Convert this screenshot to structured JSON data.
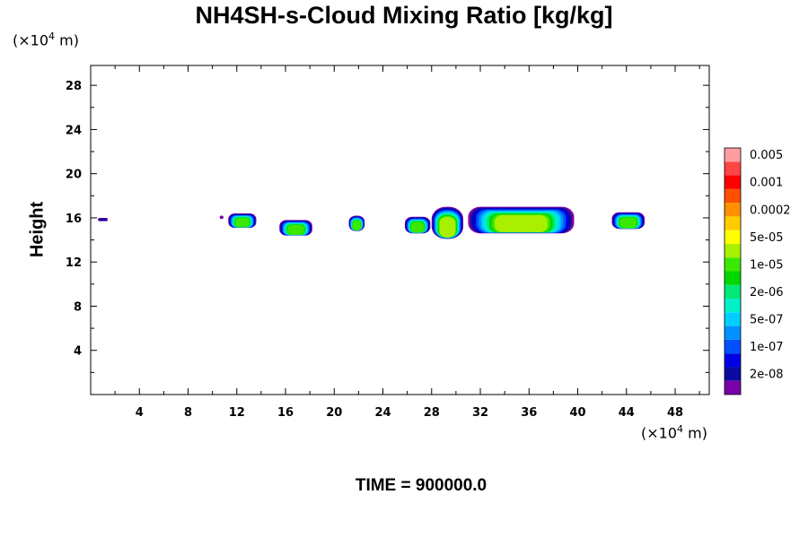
{
  "chart_data": {
    "type": "heatmap",
    "title": "NH4SH-s-Cloud Mixing Ratio [kg/kg]",
    "ylabel": "Height",
    "xlabel": "",
    "x_unit": {
      "base": "(×10",
      "exp": "4",
      "tail": " m)"
    },
    "y_unit": {
      "base": "(×10",
      "exp": "4",
      "tail": " m)"
    },
    "xlim": [
      0,
      50.8
    ],
    "ylim": [
      0,
      29.8
    ],
    "x_ticks": [
      4,
      8,
      12,
      16,
      20,
      24,
      28,
      32,
      36,
      40,
      44,
      48
    ],
    "y_ticks": [
      4,
      8,
      12,
      16,
      20,
      24,
      28
    ],
    "footer": "TIME = 900000.0",
    "colorbar": {
      "colors": [
        "#7a00a8",
        "#0a0a9e",
        "#0000e6",
        "#0050ff",
        "#0090ff",
        "#00d0ff",
        "#00f0c8",
        "#00e878",
        "#00d800",
        "#3ce800",
        "#a8f000",
        "#ffff00",
        "#ffcc00",
        "#ff9000",
        "#ff5000",
        "#ff0000",
        "#ff4646",
        "#ff9ea0"
      ],
      "labels": [
        "2e-08",
        "1e-07",
        "5e-07",
        "2e-06",
        "1e-05",
        "5e-05",
        "0.0002",
        "0.001",
        "0.005"
      ]
    },
    "clouds": [
      {
        "x0": 0.6,
        "x1": 1.4,
        "base": 15.7,
        "top": 16.0,
        "peak": 2
      },
      {
        "x0": 10.6,
        "x1": 10.9,
        "base": 15.9,
        "top": 16.2,
        "peak": 1
      },
      {
        "x0": 11.3,
        "x1": 13.6,
        "base": 15.1,
        "top": 16.4,
        "peak": 10
      },
      {
        "x0": 15.5,
        "x1": 18.2,
        "base": 14.4,
        "top": 15.8,
        "peak": 10
      },
      {
        "x0": 21.2,
        "x1": 22.5,
        "base": 14.8,
        "top": 16.2,
        "peak": 10
      },
      {
        "x0": 25.8,
        "x1": 27.9,
        "base": 14.6,
        "top": 16.1,
        "peak": 10
      },
      {
        "x0": 28.0,
        "x1": 30.6,
        "base": 14.1,
        "top": 17.0,
        "peak": 11
      },
      {
        "x0": 31.0,
        "x1": 39.7,
        "base": 14.6,
        "top": 17.0,
        "peak": 11
      },
      {
        "x0": 42.8,
        "x1": 45.5,
        "base": 15.0,
        "top": 16.5,
        "peak": 10
      }
    ]
  }
}
